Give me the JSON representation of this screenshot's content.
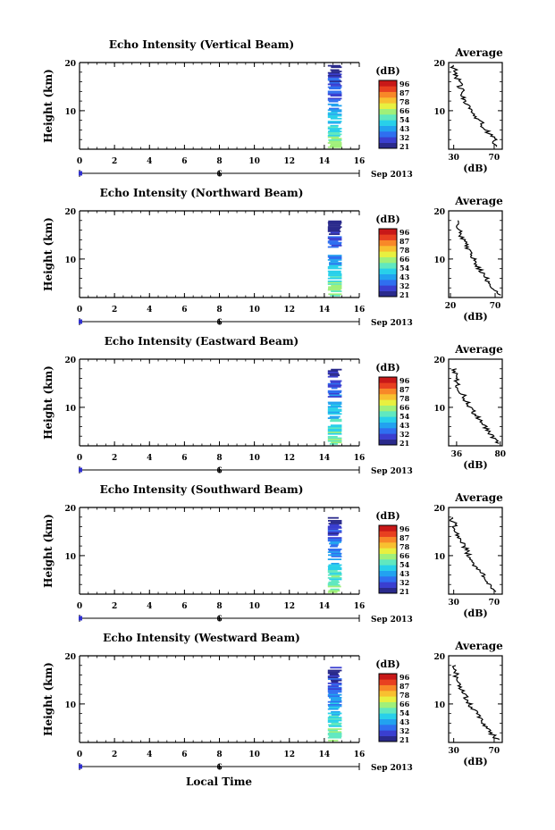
{
  "footer": {
    "xlabel": "Local Time"
  },
  "colorbar": {
    "unit": "(dB)",
    "ticks": [
      "96",
      "87",
      "78",
      "66",
      "54",
      "43",
      "32",
      "21"
    ],
    "colors": [
      "#2a2a8c",
      "#3a3fd0",
      "#2f6ff0",
      "#22a2f0",
      "#28d0ea",
      "#60e8c0",
      "#a0f07a",
      "#e8f040",
      "#f8c030",
      "#f88828",
      "#e84020",
      "#c81818"
    ]
  },
  "chart_data": [
    {
      "type": "heatmap",
      "title": "Echo Intensity (Vertical Beam)",
      "ylabel": "Height (km)",
      "xlim": [
        0,
        16
      ],
      "ylim": [
        2,
        20
      ],
      "x_ticks": [
        "0",
        "2",
        "4",
        "6",
        "8",
        "10",
        "12",
        "14",
        "16"
      ],
      "y_ticks": [
        "20",
        "10"
      ],
      "timeline_label": "6",
      "date_label": "Sep 2013",
      "data_x_range": [
        14.2,
        15.0
      ],
      "data_height_range": [
        2.5,
        19.5
      ],
      "profile": {
        "title": "Average",
        "xlabel": "(dB)",
        "x_ticks": [
          "30",
          "70"
        ],
        "y_ticks": [
          "20",
          "10"
        ],
        "xlim": [
          25,
          78
        ],
        "heights": [
          2.5,
          4,
          6,
          8,
          10,
          12,
          14,
          16,
          18,
          19.5
        ],
        "values": [
          72,
          70,
          62,
          55,
          48,
          42,
          38,
          35,
          32,
          28
        ]
      }
    },
    {
      "type": "heatmap",
      "title": "Echo Intensity (Northward Beam)",
      "ylabel": "Height (km)",
      "xlim": [
        0,
        16
      ],
      "ylim": [
        2,
        20
      ],
      "x_ticks": [
        "0",
        "2",
        "4",
        "6",
        "8",
        "10",
        "12",
        "14",
        "16"
      ],
      "y_ticks": [
        "20",
        "10"
      ],
      "timeline_label": "6",
      "date_label": "Sep 2013",
      "data_x_range": [
        14.2,
        15.0
      ],
      "data_height_range": [
        2.5,
        18
      ],
      "profile": {
        "title": "Average",
        "xlabel": "(dB)",
        "x_ticks": [
          "20",
          "70"
        ],
        "y_ticks": [
          "20",
          "10"
        ],
        "xlim": [
          18,
          78
        ],
        "heights": [
          2.5,
          4,
          6,
          8,
          10,
          12,
          14,
          16,
          18
        ],
        "values": [
          74,
          68,
          60,
          52,
          46,
          40,
          34,
          30,
          27
        ]
      }
    },
    {
      "type": "heatmap",
      "title": "Echo Intensity (Eastward Beam)",
      "ylabel": "Height (km)",
      "xlim": [
        0,
        16
      ],
      "ylim": [
        2,
        20
      ],
      "x_ticks": [
        "0",
        "2",
        "4",
        "6",
        "8",
        "10",
        "12",
        "14",
        "16"
      ],
      "y_ticks": [
        "20",
        "10"
      ],
      "timeline_label": "6",
      "date_label": "Sep 2013",
      "data_x_range": [
        14.2,
        15.0
      ],
      "data_height_range": [
        2.5,
        18
      ],
      "profile": {
        "title": "Average",
        "xlabel": "(dB)",
        "x_ticks": [
          "36",
          "80"
        ],
        "y_ticks": [
          "20",
          "10"
        ],
        "xlim": [
          28,
          82
        ],
        "heights": [
          2.5,
          4,
          6,
          8,
          10,
          12,
          14,
          16,
          18
        ],
        "values": [
          78,
          72,
          64,
          57,
          50,
          44,
          38,
          35,
          33
        ]
      }
    },
    {
      "type": "heatmap",
      "title": "Echo Intensity (Southward Beam)",
      "ylabel": "Height (km)",
      "xlim": [
        0,
        16
      ],
      "ylim": [
        2,
        20
      ],
      "x_ticks": [
        "0",
        "2",
        "4",
        "6",
        "8",
        "10",
        "12",
        "14",
        "16"
      ],
      "y_ticks": [
        "20",
        "10"
      ],
      "timeline_label": "6",
      "date_label": "Sep 2013",
      "data_x_range": [
        14.2,
        15.0
      ],
      "data_height_range": [
        2.5,
        18
      ],
      "profile": {
        "title": "Average",
        "xlabel": "(dB)",
        "x_ticks": [
          "30",
          "70"
        ],
        "y_ticks": [
          "20",
          "10"
        ],
        "xlim": [
          25,
          78
        ],
        "heights": [
          2.5,
          4,
          6,
          8,
          10,
          12,
          14,
          16,
          18
        ],
        "values": [
          72,
          66,
          58,
          51,
          45,
          40,
          35,
          31,
          28
        ]
      }
    },
    {
      "type": "heatmap",
      "title": "Echo Intensity (Westward Beam)",
      "ylabel": "Height (km)",
      "xlim": [
        0,
        16
      ],
      "ylim": [
        2,
        20
      ],
      "x_ticks": [
        "0",
        "2",
        "4",
        "6",
        "8",
        "10",
        "12",
        "14",
        "16"
      ],
      "y_ticks": [
        "20",
        "10"
      ],
      "timeline_label": "6",
      "date_label": "Sep 2013",
      "data_x_range": [
        14.2,
        15.0
      ],
      "data_height_range": [
        2.5,
        18
      ],
      "profile": {
        "title": "Average",
        "xlabel": "(dB)",
        "x_ticks": [
          "30",
          "70"
        ],
        "y_ticks": [
          "20",
          "10"
        ],
        "xlim": [
          25,
          78
        ],
        "heights": [
          2.5,
          4,
          6,
          8,
          10,
          12,
          14,
          16,
          18
        ],
        "values": [
          73,
          67,
          59,
          52,
          46,
          41,
          36,
          32,
          30
        ]
      }
    }
  ]
}
